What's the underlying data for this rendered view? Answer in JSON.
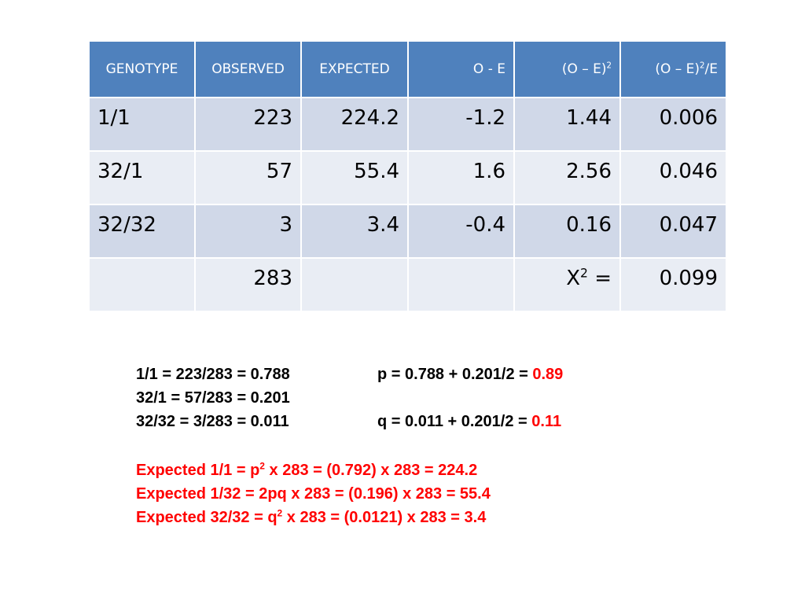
{
  "table": {
    "headers": [
      "GENOTYPE",
      "OBSERVED",
      "EXPECTED",
      "O - E",
      "(O – E)",
      "(O – E)"
    ],
    "header_sup": {
      "col5_sup": "2",
      "col6_sup": "2",
      "col6_suffix": "/E"
    },
    "rows": [
      [
        "1/1",
        "223",
        "224.2",
        "-1.2",
        "1.44",
        "0.006"
      ],
      [
        "32/1",
        "57",
        "55.4",
        "1.6",
        "2.56",
        "0.046"
      ],
      [
        "32/32",
        "3",
        "3.4",
        "-0.4",
        "0.16",
        "0.047"
      ]
    ],
    "total_row": {
      "observed": "283",
      "chi_label": "X",
      "chi_sup": "2",
      "chi_eq": " =",
      "chi_value": "0.099"
    }
  },
  "notes": {
    "line1_left": "1/1 = 223/283 = 0.788",
    "line1_right_prefix": "p = 0.788 + 0.201/2 = ",
    "line1_right_value": "0.89",
    "line2_left": "32/1 = 57/283 = 0.201",
    "line3_left": "32/32 = 3/283 = 0.011",
    "line3_right_prefix": "q = 0.011 + 0.201/2 = ",
    "line3_right_value": "0.11",
    "expected1_a": "Expected 1/1 = p",
    "expected1_sup": "2",
    "expected1_b": " x 283 = (0.792) x 283 = 224.2",
    "expected2": "Expected 1/32 = 2pq x 283 = (0.196) x 283 = 55.4",
    "expected3_a": "Expected 32/32 = q",
    "expected3_sup": "2",
    "expected3_b": " x 283 = (0.0121) x 283 = 3.4"
  },
  "colors": {
    "header_bg": "#4f81bd",
    "row_odd": "#d0d8e8",
    "row_even": "#e9edf4",
    "accent_red": "#ff0000"
  }
}
